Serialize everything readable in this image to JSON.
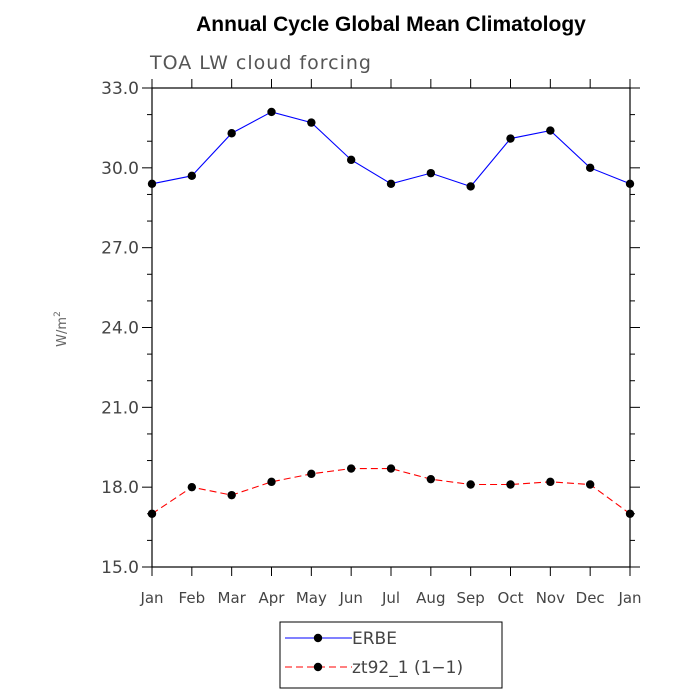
{
  "chart_data": {
    "type": "line",
    "title": "Annual Cycle Global Mean Climatology",
    "subtitle": "TOA LW cloud forcing",
    "xlabel": "",
    "ylabel": "W/m",
    "ylabel_superscript": "2",
    "categories": [
      "Jan",
      "Feb",
      "Mar",
      "Apr",
      "May",
      "Jun",
      "Jul",
      "Aug",
      "Sep",
      "Oct",
      "Nov",
      "Dec",
      "Jan"
    ],
    "ylim": [
      15.0,
      33.0
    ],
    "yticks": [
      "15.0",
      "18.0",
      "21.0",
      "24.0",
      "27.0",
      "30.0",
      "33.0"
    ],
    "yminor_step": 1.0,
    "legend_position": "bottom-center",
    "series": [
      {
        "name": "ERBE",
        "color": "#0000ff",
        "dash": "solid",
        "marker": "filled-circle",
        "values": [
          29.4,
          29.7,
          31.3,
          32.1,
          31.7,
          30.3,
          29.4,
          29.8,
          29.3,
          31.1,
          31.4,
          30.0,
          29.4
        ]
      },
      {
        "name": "zt92_1 (1−1)",
        "color": "#ff0000",
        "dash": "dashed",
        "marker": "filled-circle",
        "values": [
          17.0,
          18.0,
          17.7,
          18.2,
          18.5,
          18.7,
          18.7,
          18.3,
          18.1,
          18.1,
          18.2,
          18.1,
          17.0
        ]
      }
    ]
  }
}
